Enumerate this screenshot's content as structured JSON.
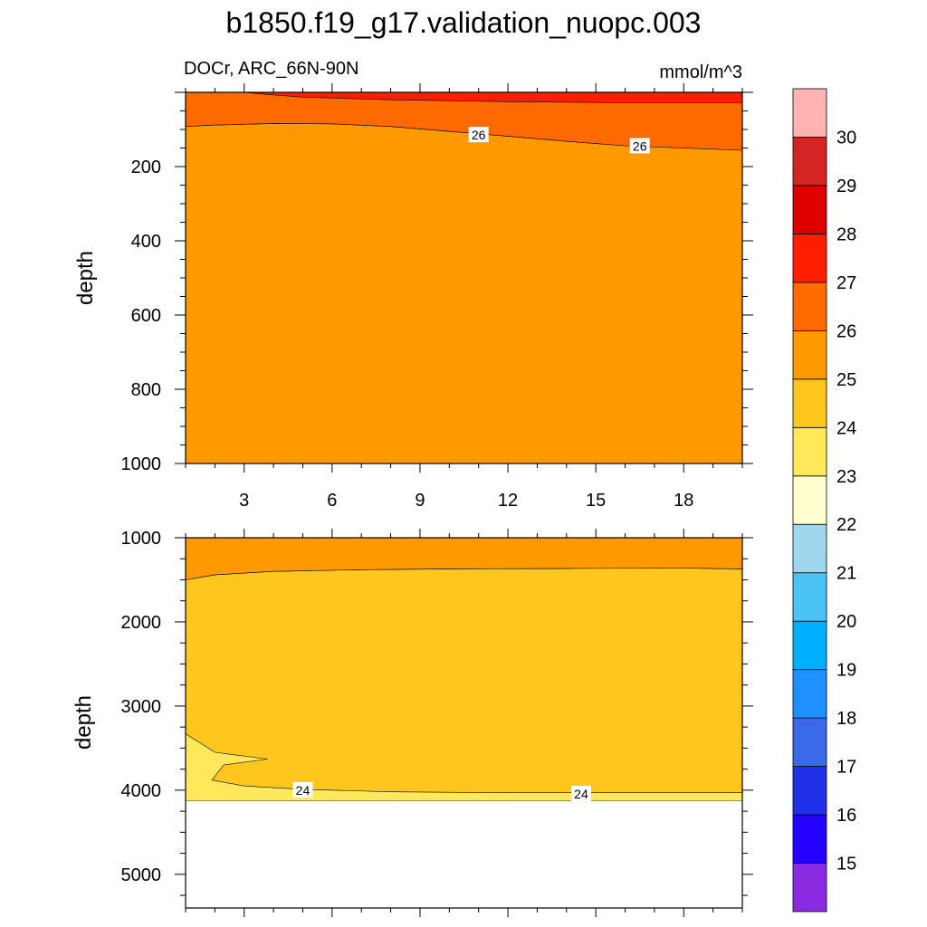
{
  "title": "b1850.f19_g17.validation_nuopc.003",
  "chart_data": [
    {
      "type": "contour",
      "panel": "upper",
      "subtitle_left": "DOCr, ARC_66N-90N",
      "subtitle_right": "mmol/m^3",
      "ylabel": "depth",
      "xlabel": "",
      "xlim": [
        1,
        20
      ],
      "ylim": [
        1000,
        0
      ],
      "x_ticks": [
        3,
        6,
        9,
        12,
        15,
        18
      ],
      "x_tick_labels": [
        "3",
        "6",
        "9",
        "12",
        "15",
        "18"
      ],
      "y_ticks": [
        200,
        400,
        600,
        800,
        1000
      ],
      "y_tick_labels": [
        "200",
        "400",
        "600",
        "800",
        "1000"
      ],
      "regions": [
        {
          "level_range": [
            25,
            26
          ],
          "color": "#ff9900",
          "polygon": [
            [
              1,
              92
            ],
            [
              2,
              88
            ],
            [
              4,
              84
            ],
            [
              6,
              85
            ],
            [
              8,
              92
            ],
            [
              10,
              105
            ],
            [
              12,
              118
            ],
            [
              14,
              132
            ],
            [
              16,
              144
            ],
            [
              18,
              150
            ],
            [
              20,
              156
            ],
            [
              20,
              1000
            ],
            [
              1,
              1000
            ]
          ]
        },
        {
          "level_range": [
            26,
            27
          ],
          "color": "#ff6a00",
          "polygon": [
            [
              1,
              0
            ],
            [
              20,
              0
            ],
            [
              20,
              156
            ],
            [
              18,
              150
            ],
            [
              16,
              144
            ],
            [
              14,
              132
            ],
            [
              12,
              118
            ],
            [
              10,
              105
            ],
            [
              8,
              92
            ],
            [
              6,
              85
            ],
            [
              4,
              84
            ],
            [
              2,
              88
            ],
            [
              1,
              92
            ]
          ]
        },
        {
          "level_range": [
            27,
            28
          ],
          "color": "#ff1e00",
          "polygon": [
            [
              3,
              0
            ],
            [
              20,
              0
            ],
            [
              20,
              28
            ],
            [
              16,
              28
            ],
            [
              12,
              25
            ],
            [
              8,
              20
            ],
            [
              5,
              13
            ],
            [
              3.5,
              4
            ],
            [
              3,
              0
            ]
          ]
        }
      ],
      "contour_labels": [
        {
          "text": "26",
          "x": 11,
          "y": 115
        },
        {
          "text": "26",
          "x": 16.5,
          "y": 145
        }
      ]
    },
    {
      "type": "contour",
      "panel": "lower",
      "ylabel": "depth",
      "xlabel": "",
      "xlim": [
        1,
        20
      ],
      "ylim": [
        5400,
        1000
      ],
      "x_ticks": [
        3,
        6,
        9,
        12,
        15,
        18
      ],
      "y_ticks": [
        1000,
        2000,
        3000,
        4000,
        5000
      ],
      "y_tick_labels": [
        "1000",
        "2000",
        "3000",
        "4000",
        "5000"
      ],
      "missing_below": 4130,
      "regions": [
        {
          "level_range": [
            24,
            25
          ],
          "color": "#ffc61e",
          "polygon": [
            [
              1,
              1500
            ],
            [
              2,
              1440
            ],
            [
              4,
              1400
            ],
            [
              7,
              1380
            ],
            [
              10,
              1370
            ],
            [
              14,
              1365
            ],
            [
              18,
              1360
            ],
            [
              20,
              1370
            ],
            [
              20,
              4130
            ],
            [
              1,
              4130
            ]
          ]
        },
        {
          "level_range": [
            25,
            26
          ],
          "color": "#ff9900",
          "polygon": [
            [
              1,
              1000
            ],
            [
              20,
              1000
            ],
            [
              20,
              1370
            ],
            [
              18,
              1360
            ],
            [
              14,
              1365
            ],
            [
              10,
              1370
            ],
            [
              7,
              1380
            ],
            [
              4,
              1400
            ],
            [
              2,
              1440
            ],
            [
              1,
              1500
            ]
          ]
        },
        {
          "level_range": [
            23,
            24
          ],
          "color": "#ffe95a",
          "polygon": [
            [
              1,
              3330
            ],
            [
              2,
              3550
            ],
            [
              3.8,
              3630
            ],
            [
              2.3,
              3700
            ],
            [
              1.9,
              3880
            ],
            [
              3,
              3950
            ],
            [
              5,
              3990
            ],
            [
              8,
              4020
            ],
            [
              12,
              4030
            ],
            [
              16,
              4030
            ],
            [
              20,
              4030
            ],
            [
              20,
              4130
            ],
            [
              1,
              4130
            ]
          ]
        }
      ],
      "contour_labels": [
        {
          "text": "24",
          "x": 5,
          "y": 4000
        },
        {
          "text": "24",
          "x": 14.5,
          "y": 4045
        }
      ]
    }
  ],
  "colorbar": {
    "levels": [
      "15",
      "16",
      "17",
      "18",
      "19",
      "20",
      "21",
      "22",
      "23",
      "24",
      "25",
      "26",
      "27",
      "28",
      "29",
      "30"
    ],
    "colors": [
      "#8a2be2",
      "#2400ff",
      "#2030e8",
      "#3a6ae8",
      "#1e90ff",
      "#00b0ff",
      "#4cc3f5",
      "#a0d7ee",
      "#ffffd0",
      "#ffe95a",
      "#ffc61e",
      "#ff9900",
      "#ff6a00",
      "#ff1e00",
      "#e00000",
      "#d42424",
      "#ffb3b3"
    ]
  }
}
